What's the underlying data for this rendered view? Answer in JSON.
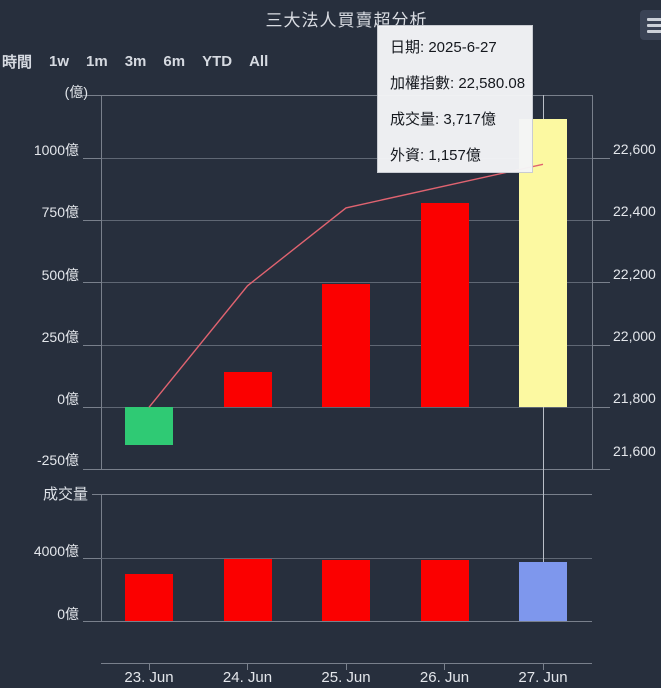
{
  "title": "三大法人買賣超分析",
  "menu": {
    "icon": "hamburger-icon"
  },
  "range_selector": {
    "label": "時間",
    "options": [
      "1w",
      "1m",
      "3m",
      "6m",
      "YTD",
      "All"
    ]
  },
  "axis_unit_label": "(億)",
  "tooltip": {
    "rows": [
      {
        "label": "日期",
        "value": "2025-6-27"
      },
      {
        "label": "加權指數",
        "value": "22,580.08"
      },
      {
        "label": "成交量",
        "value": "3,717億"
      },
      {
        "label": "外資",
        "value": "1,157億"
      }
    ]
  },
  "colors": {
    "background": "#272f3d",
    "grid_line": "#5f6774",
    "axis_line": "#79808c",
    "text": "#dde1e7",
    "bar_buy": "#fb0000",
    "bar_sell": "#2fca74",
    "bar_highlight": "#fcf9a1",
    "volume_highlight": "#7e97ed",
    "index_line": "#e06370",
    "crosshair": "#b9bec7",
    "tooltip_bg": "#f2f3f5",
    "tooltip_text": "#15181e"
  },
  "chart_data": [
    {
      "type": "bar",
      "title": "三大法人買賣超分析",
      "subtype": "bar-with-line-overlay",
      "categories": [
        "23. Jun",
        "24. Jun",
        "25. Jun",
        "26. Jun",
        "27. Jun"
      ],
      "series": [
        {
          "name": "外資買賣超",
          "type": "bar",
          "unit": "億",
          "values": [
            -150,
            140,
            495,
            820,
            1157
          ],
          "point_colors": [
            "#2fca74",
            "#fb0000",
            "#fb0000",
            "#fb0000",
            "#fcf9a1"
          ]
        },
        {
          "name": "加權指數",
          "type": "line",
          "values": [
            21800,
            22190,
            22440,
            22510,
            22580.08
          ],
          "color": "#e06370"
        }
      ],
      "y_left": {
        "unit_label": "(億)",
        "tick_values": [
          1000,
          750,
          500,
          250,
          0,
          -250
        ],
        "tick_labels": [
          "1000億",
          "750億",
          "500億",
          "250億",
          "0億",
          "-250億"
        ],
        "range": [
          -250,
          1253
        ]
      },
      "y_right": {
        "tick_values": [
          22600,
          22400,
          22200,
          22000,
          21800,
          21600
        ],
        "tick_labels": [
          "22,600",
          "22,400",
          "22,200",
          "22,000",
          "21,800",
          "21,600"
        ],
        "range": [
          21600,
          22803
        ]
      },
      "grid": true,
      "legend_position": "none",
      "highlighted_index": 4,
      "hover_date": "2025-6-27"
    },
    {
      "type": "bar",
      "title": "成交量",
      "categories": [
        "23. Jun",
        "24. Jun",
        "25. Jun",
        "26. Jun",
        "27. Jun"
      ],
      "values": [
        2980,
        3940,
        3880,
        3850,
        3717
      ],
      "unit": "億",
      "point_colors": [
        "#fb0000",
        "#fb0000",
        "#fb0000",
        "#fb0000",
        "#7e97ed"
      ],
      "y_left": {
        "tick_values": [
          4000,
          0
        ],
        "tick_labels": [
          "4000億",
          "0億"
        ],
        "range": [
          0,
          8060
        ]
      },
      "grid": true,
      "legend_position": "none",
      "highlighted_index": 4
    }
  ]
}
